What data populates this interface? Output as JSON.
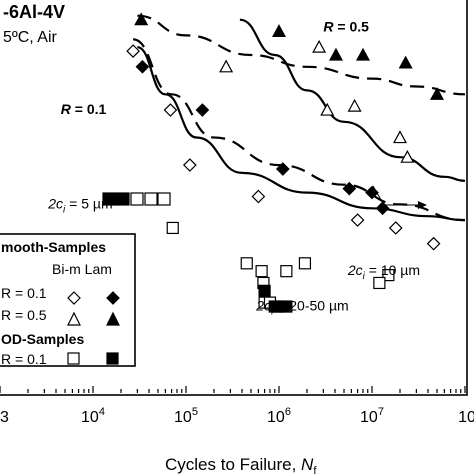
{
  "chart_data": {
    "type": "scatter",
    "title_lines": [
      "-6Al-4V",
      "5ºC, Air"
    ],
    "xlabel": "Cycles to Failure, ",
    "xlabel_symbol": "N",
    "xlabel_sub": "f",
    "xscale": "log",
    "xlim": [
      1000,
      100000000
    ],
    "ylim": [
      0,
      100
    ],
    "grid": false,
    "x_tick_labels": [
      {
        "value": 1000,
        "label": "3",
        "partial": true
      },
      {
        "value": 10000,
        "label": "10",
        "exp": "4"
      },
      {
        "value": 100000,
        "label": "10",
        "exp": "5"
      },
      {
        "value": 1000000,
        "label": "10",
        "exp": "6"
      },
      {
        "value": 10000000,
        "label": "10",
        "exp": "7"
      },
      {
        "value": 100000000,
        "label": "10",
        "partial": true
      }
    ],
    "colors": {
      "black": "#000000",
      "white": "#ffffff"
    },
    "series": [
      {
        "name": "Smooth Bi-m R = 0.1",
        "marker": "diamond-open",
        "points": [
          [
            27000,
            87
          ],
          [
            68000,
            72
          ],
          [
            110000,
            58
          ],
          [
            600000,
            50
          ],
          [
            7000000,
            44
          ],
          [
            18000000,
            42
          ],
          [
            46000000,
            38
          ]
        ]
      },
      {
        "name": "Smooth Lam R = 0.1",
        "marker": "diamond-filled",
        "points": [
          [
            34000,
            83
          ],
          [
            150000,
            72
          ],
          [
            1100000,
            57
          ],
          [
            5700000,
            52
          ],
          [
            10000000,
            51
          ],
          [
            13000000,
            47
          ]
        ]
      },
      {
        "name": "Smooth Bi-m R = 0.5",
        "marker": "triangle-open",
        "points": [
          [
            270000,
            83
          ],
          [
            2700000,
            88
          ],
          [
            3300000,
            72
          ],
          [
            6500000,
            73
          ],
          [
            20000000,
            65
          ],
          [
            24000000,
            60
          ]
        ]
      },
      {
        "name": "Smooth Lam R = 0.5",
        "marker": "triangle-filled",
        "points": [
          [
            33000,
            95
          ],
          [
            1000000,
            92
          ],
          [
            4100000,
            86
          ],
          [
            8000000,
            86
          ],
          [
            23000000,
            84
          ],
          [
            50000000,
            76
          ]
        ]
      },
      {
        "name": "FOD Bi-m R = 0.1",
        "marker": "square-open",
        "points": [
          [
            72000,
            42
          ],
          [
            450000,
            33
          ],
          [
            650000,
            31
          ],
          [
            680000,
            28
          ],
          [
            700000,
            23
          ],
          [
            800000,
            23
          ],
          [
            1200000,
            31
          ],
          [
            1900000,
            33
          ],
          [
            15000000,
            30
          ],
          [
            12000000,
            28
          ]
        ]
      },
      {
        "name": "FOD Lam R = 0.1",
        "marker": "square-filled",
        "points": [
          [
            700000,
            26
          ],
          [
            900000,
            22
          ],
          [
            1000000,
            22
          ],
          [
            1200000,
            22
          ]
        ]
      }
    ],
    "curves": [
      {
        "name": "R = 0.1 dashed",
        "style": "dashed",
        "points": [
          [
            27000,
            90
          ],
          [
            70000,
            76
          ],
          [
            200000,
            65
          ],
          [
            1000000,
            58
          ],
          [
            5000000,
            53
          ],
          [
            20000000,
            48
          ],
          [
            100000000,
            44
          ]
        ]
      },
      {
        "name": "R = 0.5 dashed",
        "style": "dashed",
        "points": [
          [
            30000,
            96
          ],
          [
            100000,
            91
          ],
          [
            500000,
            86
          ],
          [
            2000000,
            83
          ],
          [
            10000000,
            80
          ],
          [
            30000000,
            78
          ],
          [
            100000000,
            76
          ]
        ]
      },
      {
        "name": "R = 0.1 solid",
        "style": "solid",
        "points": [
          [
            30000,
            88
          ],
          [
            60000,
            76
          ],
          [
            130000,
            65
          ],
          [
            400000,
            56
          ],
          [
            2000000,
            51
          ],
          [
            10000000,
            47
          ],
          [
            40000000,
            45
          ],
          [
            100000000,
            44
          ]
        ]
      },
      {
        "name": "R = 0.5 solid",
        "style": "solid",
        "points": [
          [
            380000,
            95
          ],
          [
            900000,
            86
          ],
          [
            2000000,
            77
          ],
          [
            5000000,
            69
          ],
          [
            20000000,
            60
          ],
          [
            60000000,
            55
          ],
          [
            100000000,
            54
          ]
        ]
      }
    ],
    "annotations": [
      {
        "text_parts": [
          "R",
          " = 0.5"
        ],
        "at": [
          3000000,
          92
        ],
        "bold": true,
        "italic_first": true
      },
      {
        "text_parts": [
          "R",
          " = 0.1"
        ],
        "at": [
          4500,
          71
        ],
        "bold": true,
        "italic_first": true
      },
      {
        "text_parts": [
          "2c",
          "i",
          " = 5 µm"
        ],
        "at": [
          3300,
          47
        ],
        "subscript_index": 1
      },
      {
        "text_parts": [
          "2c",
          "i",
          " = 10 µm"
        ],
        "at": [
          5500000,
          30
        ],
        "subscript_index": 1
      },
      {
        "text_parts": [
          "2c",
          "i",
          " = 20-50 µm"
        ],
        "at": [
          570000,
          21
        ],
        "subscript_index": 1
      }
    ],
    "legend": {
      "placement": "bottom-left",
      "smooth_heading": "mooth-Samples",
      "column_headers": "Bi-m Lam",
      "row1": "R = 0.1",
      "row2": "R = 0.5",
      "fod_heading": "OD-Samples",
      "row3": "R = 0.1"
    }
  }
}
